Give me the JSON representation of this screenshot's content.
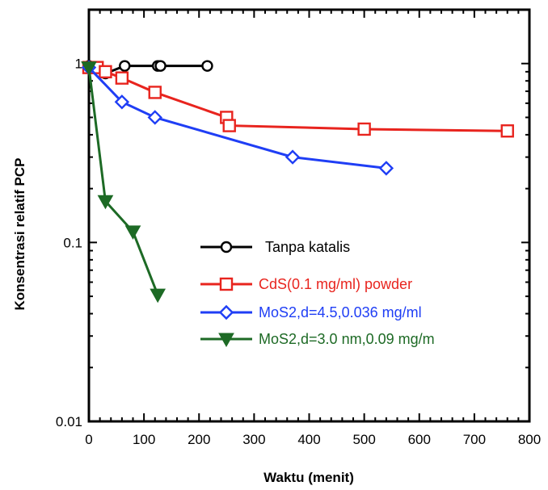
{
  "chart_data": {
    "type": "line",
    "title": "",
    "xlabel": "Waktu (menit)",
    "ylabel": "Konsentrasi relatif PCP",
    "xlim": [
      0,
      800
    ],
    "ylim": [
      0.01,
      2
    ],
    "yscale": "log",
    "grid": false,
    "legend_position": "center-right",
    "x_ticks": [
      {
        "value": 0,
        "label": "0"
      },
      {
        "value": 100,
        "label": "100"
      },
      {
        "value": 200,
        "label": "200"
      },
      {
        "value": 300,
        "label": "300"
      },
      {
        "value": 400,
        "label": "400"
      },
      {
        "value": 500,
        "label": "500"
      },
      {
        "value": 600,
        "label": "600"
      },
      {
        "value": 700,
        "label": "700"
      },
      {
        "value": 800,
        "label": "800"
      }
    ],
    "y_ticks": [
      {
        "value": 1,
        "label": "1"
      },
      {
        "value": 0.1,
        "label": "0.1"
      },
      {
        "value": 0.01,
        "label": "0.01"
      }
    ],
    "series": [
      {
        "name": "Tanpa katalis",
        "color": "#000000",
        "marker": "circle",
        "x": [
          0,
          30,
          65,
          125,
          130,
          215
        ],
        "y": [
          0.97,
          0.88,
          0.97,
          0.97,
          0.97,
          0.97
        ]
      },
      {
        "name": "CdS(0.1 mg/ml) powder",
        "color": "#e8241e",
        "marker": "square",
        "x": [
          0,
          15,
          30,
          60,
          120,
          250,
          255,
          500,
          760
        ],
        "y": [
          0.95,
          0.95,
          0.9,
          0.83,
          0.69,
          0.5,
          0.45,
          0.43,
          0.42
        ]
      },
      {
        "name": "MoS2,d=4.5,0.036 mg/ml",
        "color": "#1f3ef5",
        "marker": "diamond",
        "x": [
          0,
          60,
          120,
          370,
          540
        ],
        "y": [
          0.95,
          0.61,
          0.5,
          0.3,
          0.26
        ]
      },
      {
        "name": "MoS2,d=3.0 nm,0.09 mg/m",
        "color": "#1d6a25",
        "marker": "triangle-down",
        "x": [
          0,
          30,
          80,
          125
        ],
        "y": [
          0.95,
          0.17,
          0.115,
          0.051
        ]
      }
    ]
  }
}
